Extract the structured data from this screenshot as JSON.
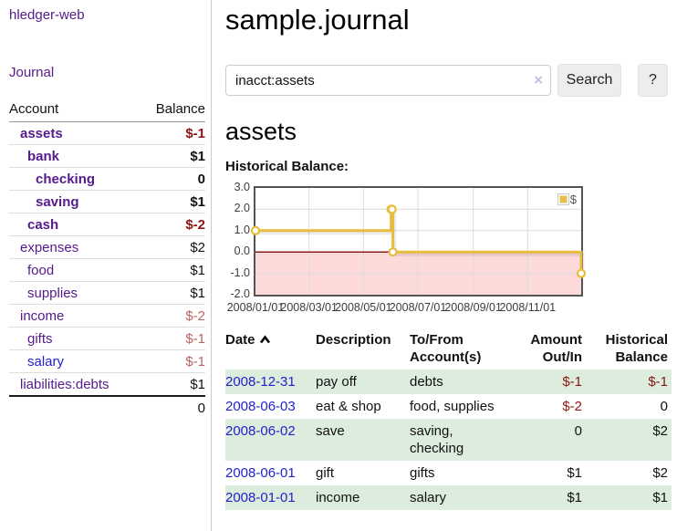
{
  "colors": {
    "purple": "#551a8b",
    "blue": "#2222cc",
    "black": "#111111",
    "darkred": "#8f1414",
    "rose": "#b86565",
    "green_row": "#dcecdd",
    "gold": "#e8bc3e",
    "pink_negative": "#fcdada",
    "zero_line": "#901b1b",
    "grid": "#dcdcdc",
    "chart_border": "#545454"
  },
  "sidebar": {
    "app_title": "hledger-web",
    "journal_link": "Journal",
    "accounts_header": {
      "account": "Account",
      "balance": "Balance"
    },
    "accounts": [
      {
        "name": "assets",
        "level": 1,
        "bold": true,
        "name_color": "purple",
        "balance": "$-1",
        "balance_color": "darkred"
      },
      {
        "name": "bank",
        "level": 2,
        "bold": true,
        "name_color": "purple",
        "balance": "$1",
        "balance_color": "black"
      },
      {
        "name": "checking",
        "level": 3,
        "bold": true,
        "name_color": "purple",
        "balance": "0",
        "balance_color": "black"
      },
      {
        "name": "saving",
        "level": 3,
        "bold": true,
        "name_color": "purple",
        "balance": "$1",
        "balance_color": "black"
      },
      {
        "name": "cash",
        "level": 2,
        "bold": true,
        "name_color": "purple",
        "balance": "$-2",
        "balance_color": "darkred"
      },
      {
        "name": "expenses",
        "level": 1,
        "bold": false,
        "name_color": "purple",
        "balance": "$2",
        "balance_color": "black"
      },
      {
        "name": "food",
        "level": 2,
        "bold": false,
        "name_color": "purple",
        "balance": "$1",
        "balance_color": "black"
      },
      {
        "name": "supplies",
        "level": 2,
        "bold": false,
        "name_color": "purple",
        "balance": "$1",
        "balance_color": "black"
      },
      {
        "name": "income",
        "level": 1,
        "bold": false,
        "name_color": "purple",
        "balance": "$-2",
        "balance_color": "rose"
      },
      {
        "name": "gifts",
        "level": 2,
        "bold": false,
        "name_color": "purple",
        "balance": "$-1",
        "balance_color": "rose"
      },
      {
        "name": "salary",
        "level": 2,
        "bold": false,
        "name_color": "blue",
        "balance": "$-1",
        "balance_color": "rose"
      },
      {
        "name": "liabilities:debts",
        "level": 1,
        "bold": false,
        "name_color": "purple",
        "balance": "$1",
        "balance_color": "black"
      }
    ],
    "total": "0"
  },
  "main": {
    "title": "sample.journal",
    "search": {
      "value": "inacct:assets",
      "clear_icon": "×",
      "button": "Search",
      "help_button": "?"
    },
    "account_heading": "assets",
    "chart_label": "Historical Balance:"
  },
  "chart_data": {
    "type": "line",
    "step": true,
    "legend": [
      {
        "name": "$",
        "color": "#e8bc3e"
      }
    ],
    "legend_position": "top-right",
    "grid": true,
    "ylim": [
      -2,
      3
    ],
    "yticks": [
      3.0,
      2.0,
      1.0,
      0.0,
      -1.0,
      -2.0
    ],
    "xticks": [
      "2008/01/01",
      "2008/03/01",
      "2008/05/01",
      "2008/07/01",
      "2008/09/01",
      "2008/11/01"
    ],
    "x_range": [
      "2008-01-01",
      "2008-12-31"
    ],
    "series": [
      {
        "name": "$",
        "points": [
          [
            "2008-01-01",
            1
          ],
          [
            "2008-06-01",
            2
          ],
          [
            "2008-06-02",
            2
          ],
          [
            "2008-06-03",
            0
          ],
          [
            "2008-12-31",
            -1
          ]
        ]
      }
    ],
    "negative_region_shaded": true
  },
  "register": {
    "headers": [
      {
        "label": "Date",
        "sorted": "asc"
      },
      {
        "label": "Description"
      },
      {
        "label": "To/From Account(s)"
      },
      {
        "label": "Amount Out/In"
      },
      {
        "label": "Historical Balance"
      }
    ],
    "rows": [
      {
        "date": "2008-12-31",
        "description": "pay off",
        "accounts": "debts",
        "amount": "$-1",
        "amount_color": "darkred",
        "balance": "$-1",
        "balance_color": "darkred"
      },
      {
        "date": "2008-06-03",
        "description": "eat & shop",
        "accounts": "food, supplies",
        "amount": "$-2",
        "amount_color": "darkred",
        "balance": "0",
        "balance_color": "black"
      },
      {
        "date": "2008-06-02",
        "description": "save",
        "accounts": "saving, checking",
        "amount": "0",
        "amount_color": "black",
        "balance": "$2",
        "balance_color": "black"
      },
      {
        "date": "2008-06-01",
        "description": "gift",
        "accounts": "gifts",
        "amount": "$1",
        "amount_color": "black",
        "balance": "$2",
        "balance_color": "black"
      },
      {
        "date": "2008-01-01",
        "description": "income",
        "accounts": "salary",
        "amount": "$1",
        "amount_color": "black",
        "balance": "$1",
        "balance_color": "black"
      }
    ]
  }
}
